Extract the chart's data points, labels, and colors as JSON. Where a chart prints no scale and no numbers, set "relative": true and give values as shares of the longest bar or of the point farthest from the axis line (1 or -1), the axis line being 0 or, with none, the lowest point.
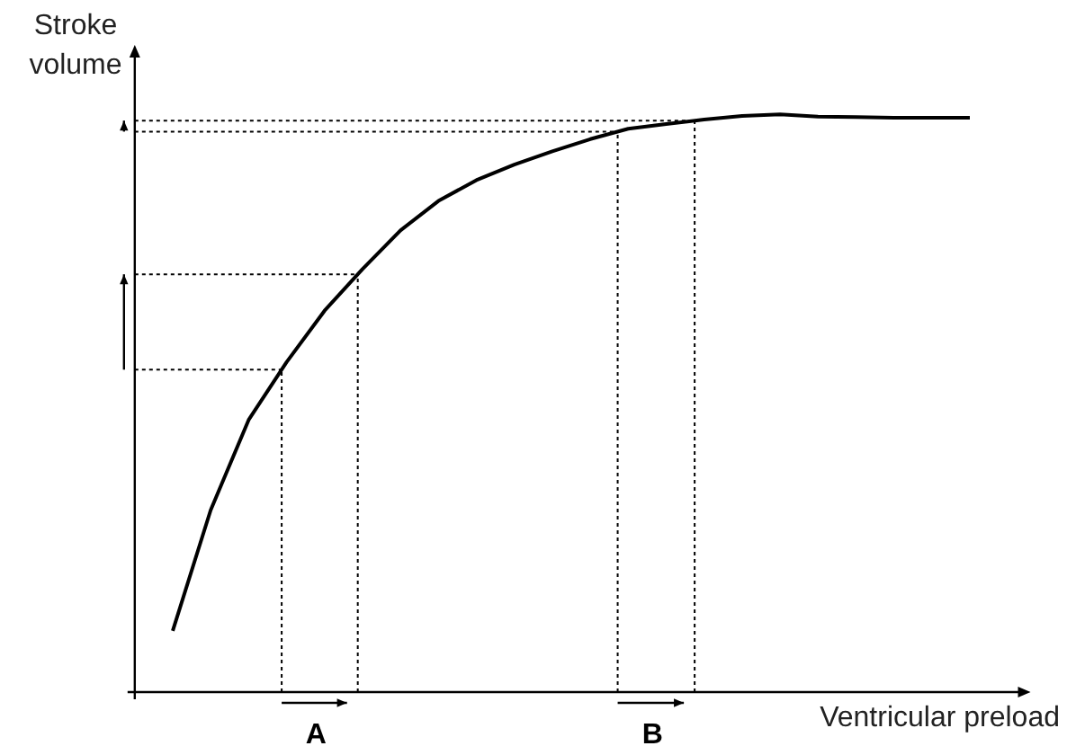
{
  "chart_data": {
    "type": "line",
    "relative": true,
    "xlabel": "Ventricular preload",
    "ylabel": "Stroke volume",
    "marker": "none",
    "grid": false,
    "line_style": "solid",
    "categories": [
      null,
      null,
      null,
      null,
      null,
      null,
      null,
      null,
      null,
      null,
      null,
      null,
      null,
      null,
      null,
      null,
      null,
      null,
      null,
      null,
      null,
      null
    ],
    "series": [
      {
        "color": "#000000",
        "values": [
          0.106,
          0.315,
          0.471,
          0.571,
          0.66,
          0.732,
          0.799,
          0.85,
          0.886,
          0.913,
          0.936,
          0.957,
          0.975,
          0.983,
          0.991,
          0.997,
          1,
          0.996,
          0.995,
          0.994,
          0.994,
          0.994
        ]
      }
    ],
    "ref_lines": [
      {
        "axis": "y",
        "value": 0.558,
        "line_style": "dotted",
        "color": "#000000"
      },
      {
        "axis": "y",
        "value": 0.723,
        "line_style": "dotted",
        "color": "#000000"
      },
      {
        "axis": "y",
        "value": 0.97,
        "line_style": "dotted",
        "color": "#000000"
      },
      {
        "axis": "y",
        "value": 0.989,
        "line_style": "dotted",
        "color": "#000000"
      }
    ],
    "annotations": [
      "A",
      "B"
    ]
  }
}
